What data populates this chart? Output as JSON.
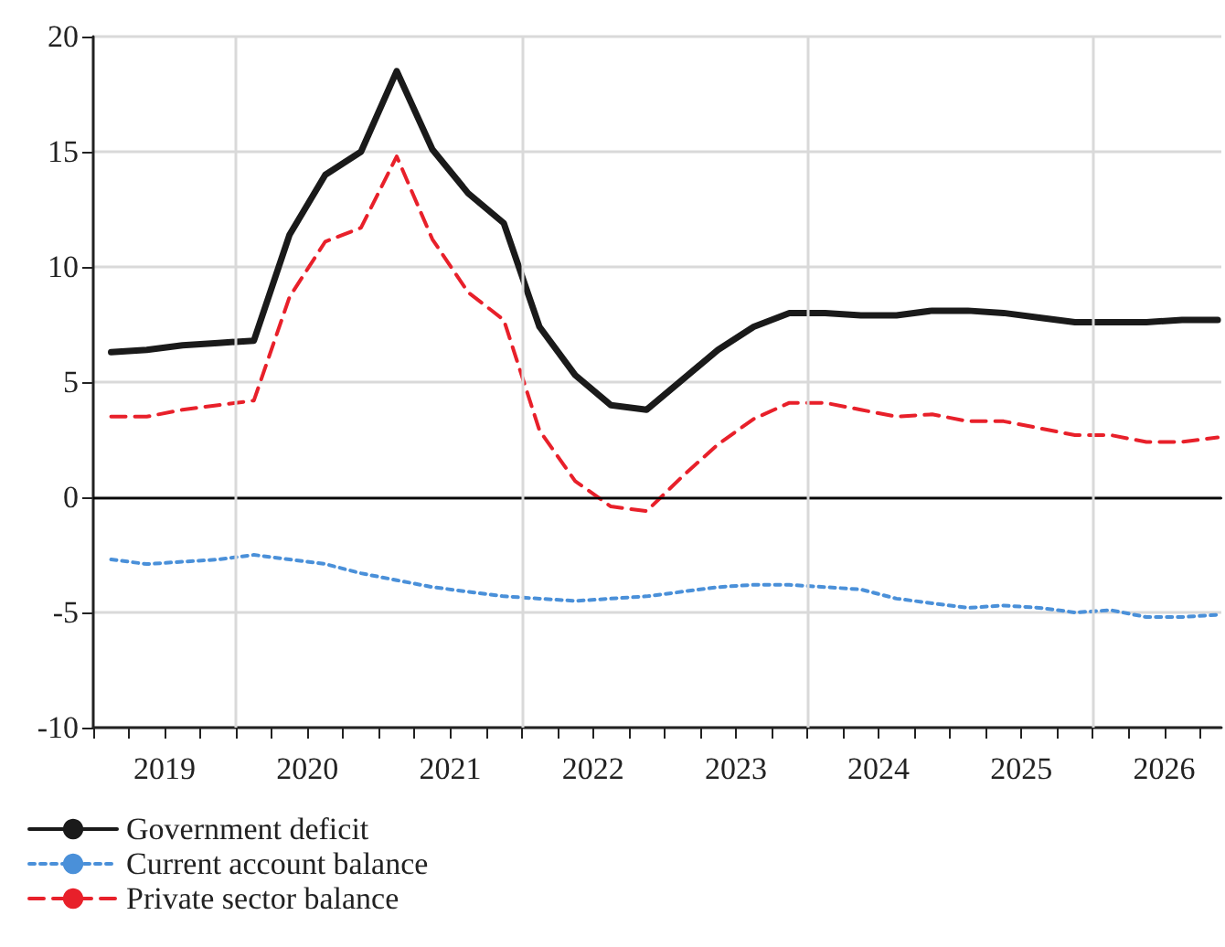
{
  "chart_data": {
    "type": "line",
    "x": [
      2019.125,
      2019.375,
      2019.625,
      2019.875,
      2020.125,
      2020.375,
      2020.625,
      2020.875,
      2021.125,
      2021.375,
      2021.625,
      2021.875,
      2022.125,
      2022.375,
      2022.625,
      2022.875,
      2023.125,
      2023.375,
      2023.625,
      2023.875,
      2024.125,
      2024.375,
      2024.625,
      2024.875,
      2025.125,
      2025.375,
      2025.625,
      2025.875,
      2026.125,
      2026.375,
      2026.625,
      2026.875
    ],
    "series": [
      {
        "name": "Government deficit",
        "color": "#1a1a1a",
        "line_style": "solid",
        "values": [
          6.3,
          6.4,
          6.6,
          6.7,
          6.8,
          11.4,
          14.0,
          15.0,
          18.5,
          15.1,
          13.2,
          11.9,
          7.4,
          5.3,
          4.0,
          3.8,
          5.1,
          6.4,
          7.4,
          8.0,
          8.0,
          7.9,
          7.9,
          8.1,
          8.1,
          8.0,
          7.8,
          7.6,
          7.6,
          7.6,
          7.7,
          7.7
        ]
      },
      {
        "name": "Current account balance",
        "color": "#4a90d9",
        "line_style": "dotted",
        "values": [
          -2.7,
          -2.9,
          -2.8,
          -2.7,
          -2.5,
          -2.7,
          -2.9,
          -3.3,
          -3.6,
          -3.9,
          -4.1,
          -4.3,
          -4.4,
          -4.5,
          -4.4,
          -4.3,
          -4.1,
          -3.9,
          -3.8,
          -3.8,
          -3.9,
          -4.0,
          -4.4,
          -4.6,
          -4.8,
          -4.7,
          -4.8,
          -5.0,
          -4.9,
          -5.2,
          -5.2,
          -5.1
        ]
      },
      {
        "name": "Private sector balance",
        "color": "#e8202a",
        "line_style": "dashed",
        "values": [
          3.5,
          3.5,
          3.8,
          4.0,
          4.2,
          8.7,
          11.1,
          11.7,
          14.8,
          11.2,
          8.9,
          7.7,
          2.9,
          0.7,
          -0.4,
          -0.6,
          0.9,
          2.3,
          3.4,
          4.1,
          4.1,
          3.8,
          3.5,
          3.6,
          3.3,
          3.3,
          3.0,
          2.7,
          2.7,
          2.4,
          2.4,
          2.6
        ]
      }
    ],
    "xlim": [
      2019,
      2026.9
    ],
    "xticks": [
      {
        "value": 2019,
        "label": null
      },
      {
        "value": 2019.25,
        "label": null
      },
      {
        "value": 2019.5,
        "label": "2019"
      },
      {
        "value": 2019.75,
        "label": null
      },
      {
        "value": 2020,
        "label": null
      },
      {
        "value": 2020.25,
        "label": null
      },
      {
        "value": 2020.5,
        "label": "2020"
      },
      {
        "value": 2020.75,
        "label": null
      },
      {
        "value": 2021,
        "label": null
      },
      {
        "value": 2021.25,
        "label": null
      },
      {
        "value": 2021.5,
        "label": "2021"
      },
      {
        "value": 2021.75,
        "label": null
      },
      {
        "value": 2022,
        "label": null
      },
      {
        "value": 2022.25,
        "label": null
      },
      {
        "value": 2022.5,
        "label": "2022"
      },
      {
        "value": 2022.75,
        "label": null
      },
      {
        "value": 2023,
        "label": null
      },
      {
        "value": 2023.25,
        "label": null
      },
      {
        "value": 2023.5,
        "label": "2023"
      },
      {
        "value": 2023.75,
        "label": null
      },
      {
        "value": 2024,
        "label": null
      },
      {
        "value": 2024.25,
        "label": null
      },
      {
        "value": 2024.5,
        "label": "2024"
      },
      {
        "value": 2024.75,
        "label": null
      },
      {
        "value": 2025,
        "label": null
      },
      {
        "value": 2025.25,
        "label": null
      },
      {
        "value": 2025.5,
        "label": "2025"
      },
      {
        "value": 2025.75,
        "label": null
      },
      {
        "value": 2026,
        "label": null
      },
      {
        "value": 2026.25,
        "label": null
      },
      {
        "value": 2026.5,
        "label": "2026"
      },
      {
        "value": 2026.75,
        "label": null
      }
    ],
    "ylim": [
      -10,
      20
    ],
    "yticks": [
      -10,
      -5,
      0,
      5,
      10,
      15,
      20
    ],
    "grid": "y",
    "ref_lines": [
      {
        "axis": "y",
        "value": 0,
        "color": "#000000"
      },
      {
        "axis": "x",
        "value": 2020,
        "color": "#d9d9d9"
      },
      {
        "axis": "x",
        "value": 2022,
        "color": "#d9d9d9"
      },
      {
        "axis": "x",
        "value": 2024,
        "color": "#d9d9d9"
      },
      {
        "axis": "x",
        "value": 2026,
        "color": "#d9d9d9"
      }
    ],
    "legend": "bottom left",
    "marker": "none"
  }
}
